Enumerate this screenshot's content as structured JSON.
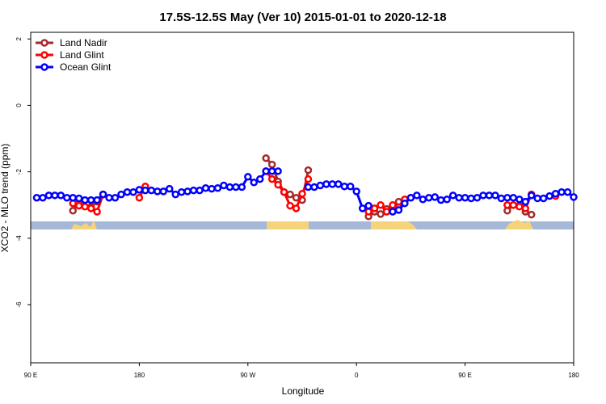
{
  "chart_data": {
    "type": "line",
    "title": "17.5S-12.5S May (Ver 10)   2015-01-01 to 2020-12-18",
    "xlabel": "Longitude",
    "ylabel": "XCO2 - MLO trend (ppm)",
    "xlim": [
      90,
      540
    ],
    "ylim": [
      -7.75,
      2.2
    ],
    "xticks": [
      {
        "value": 90,
        "label": "90 E"
      },
      180,
      {
        "value": 270,
        "label": "90 W"
      },
      {
        "value": 360,
        "label": "0"
      },
      {
        "value": 450,
        "label": "90 E"
      },
      {
        "value": 540,
        "label": "180"
      }
    ],
    "yticks": [
      2,
      0,
      -2,
      -4,
      -6
    ],
    "legend": "top-left",
    "x": [
      95,
      100,
      105,
      110,
      115,
      120,
      125,
      130,
      135,
      140,
      145,
      150,
      155,
      160,
      165,
      170,
      175,
      180,
      185,
      190,
      195,
      200,
      205,
      210,
      215,
      220,
      225,
      230,
      235,
      240,
      245,
      250,
      255,
      260,
      265,
      270,
      275,
      280,
      285,
      290,
      295,
      300,
      305,
      310,
      315,
      320,
      325,
      330,
      335,
      340,
      345,
      350,
      355,
      360,
      365,
      370,
      375,
      380,
      385,
      390,
      395,
      400,
      405,
      410,
      415,
      420,
      425,
      430,
      435,
      440,
      445,
      450,
      455,
      460,
      465,
      470,
      475,
      480,
      485,
      490,
      495,
      500,
      505,
      510,
      515,
      520,
      525,
      530,
      535,
      540
    ],
    "series": [
      {
        "name": "Land Nadir",
        "color": "#a52a2a",
        "values": [
          null,
          null,
          null,
          null,
          null,
          null,
          -3.17,
          -2.93,
          null,
          -3.05,
          -2.9,
          -2.68,
          null,
          null,
          null,
          null,
          null,
          null,
          null,
          null,
          null,
          null,
          null,
          null,
          null,
          null,
          null,
          null,
          null,
          null,
          null,
          null,
          null,
          null,
          null,
          null,
          null,
          null,
          -1.59,
          -1.78,
          -2.29,
          -2.61,
          -2.68,
          -2.78,
          -2.85,
          -1.95,
          null,
          null,
          null,
          null,
          null,
          null,
          null,
          null,
          null,
          -3.34,
          -3.2,
          -3.27,
          -3.12,
          -3.1,
          -2.9,
          null,
          null,
          null,
          null,
          null,
          null,
          null,
          null,
          null,
          null,
          null,
          null,
          null,
          null,
          null,
          null,
          null,
          -3.17,
          -3.0,
          -3.02,
          -3.2,
          -3.29,
          null,
          null,
          null,
          null,
          null,
          null,
          null
        ]
      },
      {
        "name": "Land Glint",
        "color": "#ff0000",
        "values": [
          null,
          null,
          null,
          null,
          null,
          null,
          -2.95,
          -3.02,
          -3.05,
          -3.1,
          -3.2,
          -2.68,
          null,
          null,
          null,
          null,
          null,
          -2.78,
          -2.44,
          null,
          null,
          null,
          null,
          null,
          null,
          null,
          null,
          null,
          null,
          null,
          null,
          null,
          null,
          null,
          null,
          null,
          null,
          null,
          -1.98,
          -2.22,
          -2.39,
          -2.61,
          -3.02,
          -3.1,
          -2.66,
          -2.22,
          null,
          null,
          null,
          null,
          null,
          null,
          null,
          null,
          null,
          -3.2,
          -3.1,
          -3.0,
          -3.2,
          -3.0,
          -3.07,
          -2.83,
          -2.78,
          null,
          null,
          null,
          null,
          null,
          null,
          null,
          null,
          null,
          null,
          null,
          null,
          null,
          null,
          null,
          -3.0,
          -3.0,
          -3.05,
          -3.1,
          -2.68,
          null,
          null,
          null,
          -2.73,
          null,
          null,
          null
        ]
      },
      {
        "name": "Ocean Glint",
        "color": "#0000ff",
        "values": [
          -2.78,
          -2.78,
          -2.71,
          -2.71,
          -2.71,
          -2.78,
          -2.78,
          -2.8,
          -2.85,
          -2.85,
          -2.85,
          -2.68,
          -2.78,
          -2.78,
          -2.68,
          -2.61,
          -2.61,
          -2.54,
          -2.56,
          -2.56,
          -2.59,
          -2.59,
          -2.51,
          -2.68,
          -2.61,
          -2.59,
          -2.56,
          -2.56,
          -2.49,
          -2.51,
          -2.49,
          -2.41,
          -2.46,
          -2.46,
          -2.46,
          -2.15,
          -2.32,
          -2.22,
          -1.98,
          -1.98,
          -1.98,
          null,
          null,
          null,
          null,
          -2.46,
          -2.46,
          -2.41,
          -2.37,
          -2.37,
          -2.37,
          -2.44,
          -2.44,
          -2.59,
          -3.1,
          -3.02,
          null,
          null,
          null,
          -3.2,
          -3.15,
          -2.95,
          -2.78,
          -2.71,
          -2.83,
          -2.78,
          -2.76,
          -2.85,
          -2.83,
          -2.71,
          -2.78,
          -2.78,
          -2.8,
          -2.78,
          -2.71,
          -2.71,
          -2.71,
          -2.8,
          -2.78,
          -2.78,
          -2.83,
          -2.9,
          -2.71,
          -2.8,
          -2.8,
          -2.73,
          -2.66,
          -2.61,
          -2.61,
          -2.76
        ]
      }
    ]
  }
}
